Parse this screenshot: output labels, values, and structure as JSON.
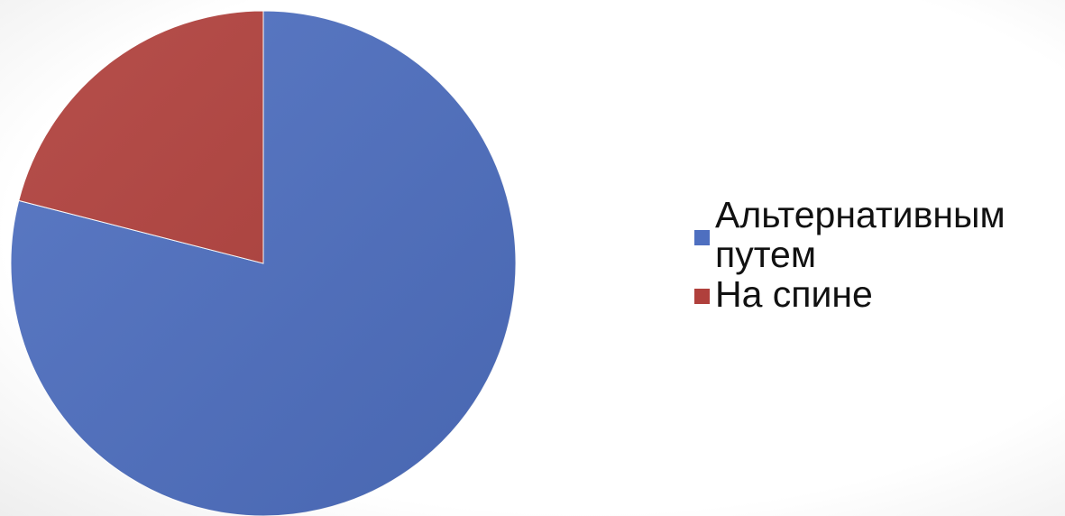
{
  "chart_data": {
    "type": "pie",
    "title": "",
    "legend_position": "right",
    "start_angle_deg": 0,
    "direction": "clockwise",
    "slices": [
      {
        "name": "Альтернативным путем",
        "value": 79,
        "color": "#4e6fc0"
      },
      {
        "name": "На спине",
        "value": 21,
        "color": "#b0403c"
      }
    ]
  }
}
